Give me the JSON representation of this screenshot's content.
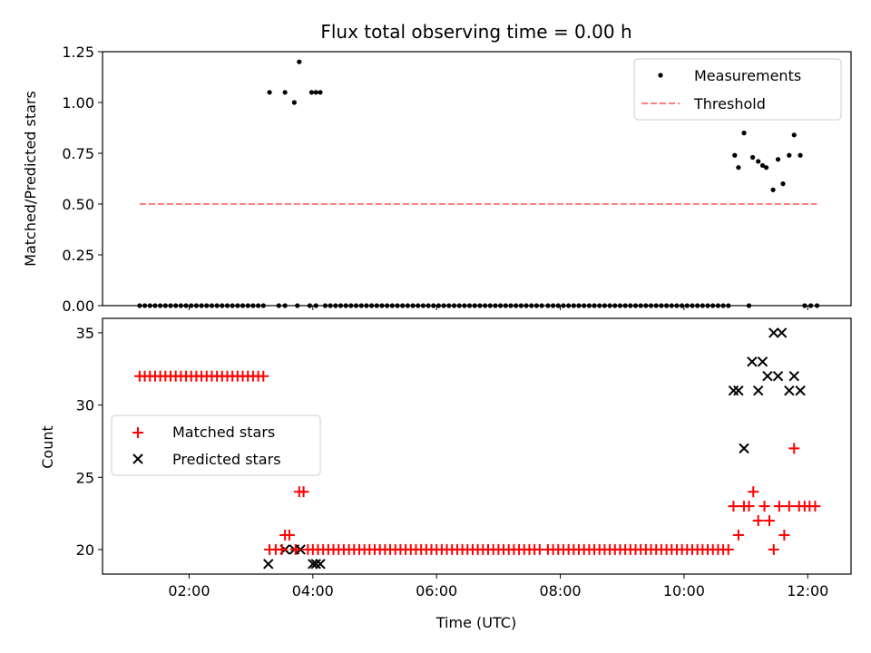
{
  "chart_data": [
    {
      "type": "scatter",
      "title": "Flux total observing time = 0.00 h",
      "xlabel": "",
      "ylabel": "Matched/Predicted stars",
      "ylim": [
        0,
        1.25
      ],
      "yticks": [
        0.0,
        0.25,
        0.5,
        0.75,
        1.0,
        1.25
      ],
      "ytick_labels": [
        "0.00",
        "0.25",
        "0.50",
        "0.75",
        "1.00",
        "1.25"
      ],
      "legend_position": "top-right",
      "legend": [
        {
          "label": "Measurements",
          "color": "#000000",
          "marker": "dot"
        },
        {
          "label": "Threshold",
          "color": "#ff7f7f",
          "marker": "dashed-line"
        }
      ],
      "threshold": {
        "value": 0.5,
        "x": [
          1.2,
          12.15
        ],
        "color": "#ff7f7f"
      },
      "measurements_zero_segments": [
        [
          1.2,
          3.2
        ],
        [
          4.2,
          7.7
        ],
        [
          7.8,
          10.75
        ]
      ],
      "measurements_zero_points": [
        3.45,
        3.55,
        3.75,
        3.95,
        4.05,
        11.05,
        11.95,
        12.05,
        12.15
      ],
      "measurements_spread": [
        [
          3.3,
          1.05
        ],
        [
          3.55,
          1.05
        ],
        [
          3.7,
          1.0
        ],
        [
          3.78,
          1.2
        ],
        [
          3.98,
          1.05
        ],
        [
          4.05,
          1.05
        ],
        [
          4.12,
          1.05
        ],
        [
          10.82,
          0.74
        ],
        [
          10.88,
          0.68
        ],
        [
          10.97,
          0.85
        ],
        [
          11.11,
          0.73
        ],
        [
          11.2,
          0.71
        ],
        [
          11.27,
          0.69
        ],
        [
          11.33,
          0.68
        ],
        [
          11.44,
          0.57
        ],
        [
          11.52,
          0.72
        ],
        [
          11.6,
          0.6
        ],
        [
          11.7,
          0.74
        ],
        [
          11.78,
          0.84
        ],
        [
          11.88,
          0.74
        ]
      ]
    },
    {
      "type": "scatter",
      "title": "",
      "xlabel": "Time (UTC)",
      "ylabel": "Count",
      "xlim": [
        0.6,
        12.7
      ],
      "ylim": [
        18.3,
        36.0
      ],
      "xticks": [
        2,
        4,
        6,
        8,
        10,
        12
      ],
      "xtick_labels": [
        "02:00",
        "04:00",
        "06:00",
        "08:00",
        "10:00",
        "12:00"
      ],
      "yticks": [
        20,
        25,
        30,
        35
      ],
      "ytick_labels": [
        "20",
        "25",
        "30",
        "35"
      ],
      "legend_position": "center-left",
      "legend": [
        {
          "label": "Matched stars",
          "color": "#ff0000",
          "marker": "plus"
        },
        {
          "label": "Predicted stars",
          "color": "#000000",
          "marker": "x"
        }
      ],
      "matched_segments": [
        {
          "x": [
            1.2,
            3.2
          ],
          "y": 32
        },
        {
          "x": [
            4.0,
            7.7
          ],
          "y": 20
        },
        {
          "x": [
            7.8,
            10.75
          ],
          "y": 20
        }
      ],
      "matched_points": [
        [
          3.3,
          20
        ],
        [
          3.4,
          20
        ],
        [
          3.55,
          21
        ],
        [
          3.62,
          21
        ],
        [
          3.5,
          20
        ],
        [
          3.72,
          20
        ],
        [
          3.78,
          24
        ],
        [
          3.85,
          24
        ],
        [
          3.92,
          20
        ],
        [
          10.8,
          23
        ],
        [
          10.88,
          21
        ],
        [
          10.97,
          23
        ],
        [
          11.05,
          23
        ],
        [
          11.12,
          24
        ],
        [
          11.2,
          22
        ],
        [
          11.3,
          23
        ],
        [
          11.38,
          22
        ],
        [
          11.45,
          20
        ],
        [
          11.54,
          23
        ],
        [
          11.62,
          21
        ],
        [
          11.7,
          23
        ],
        [
          11.78,
          27
        ],
        [
          11.86,
          23
        ],
        [
          11.95,
          23
        ],
        [
          12.03,
          23
        ],
        [
          12.12,
          23
        ]
      ],
      "predicted_points": [
        [
          3.28,
          19
        ],
        [
          3.55,
          20
        ],
        [
          3.7,
          20
        ],
        [
          3.8,
          20
        ],
        [
          4.0,
          19
        ],
        [
          4.05,
          19
        ],
        [
          4.12,
          19
        ],
        [
          10.8,
          31
        ],
        [
          10.88,
          31
        ],
        [
          10.97,
          27
        ],
        [
          11.1,
          33
        ],
        [
          11.2,
          31
        ],
        [
          11.27,
          33
        ],
        [
          11.35,
          32
        ],
        [
          11.45,
          35
        ],
        [
          11.52,
          32
        ],
        [
          11.58,
          35
        ],
        [
          11.7,
          31
        ],
        [
          11.78,
          32
        ],
        [
          11.88,
          31
        ]
      ]
    }
  ]
}
